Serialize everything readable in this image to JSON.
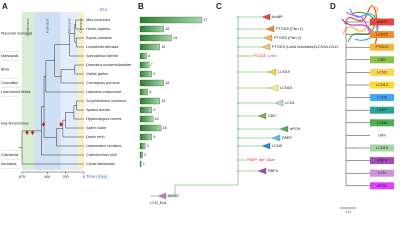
{
  "panel_a": {
    "label": "A",
    "era_title": "Era",
    "eras": [
      {
        "name": "Proterozoic",
        "start": 675,
        "end": 541,
        "color": "#d8eed3"
      },
      {
        "name": "Paleozoic",
        "start": 541,
        "end": 252,
        "color": "#cfe0f4"
      },
      {
        "name": "Mesozoic",
        "start": 252,
        "end": 66,
        "color": "#e4ecf8"
      },
      {
        "name": "Cenozoic",
        "start": 66,
        "end": 0,
        "color": "#fbefc9"
      }
    ],
    "groups": [
      "Placental mammals",
      "Marsupials",
      "Birds",
      "Crocodiles",
      "Lobe-finned fishes",
      "Ray-finned fishes",
      "Chimaeras",
      "Ascidians"
    ],
    "species": [
      "Mus musculus",
      "Homo sapiens",
      "Equus caballus",
      "Loxodonta africana",
      "Sarcophilus harrisii",
      "Dromaius novaehollandiae",
      "Gallus gallus",
      "Crocodylus porosus",
      "Latimeria chalumnae",
      "Scophthalmus maximus",
      "Sparus aurata",
      "Hippocampus comes",
      "Salmo salar",
      "Danio rerio",
      "Lepisosteus oculatus",
      "Callorhinchus milii",
      "Ciona intestinalis"
    ],
    "xlim": [
      675,
      0
    ],
    "xticks": [
      675,
      400,
      200,
      0
    ],
    "x_title": "Time (mya)"
  },
  "panel_b": {
    "label": "B",
    "counts": [
      47,
      18,
      24,
      15,
      5,
      7,
      9,
      18,
      6,
      15,
      9,
      10,
      16,
      9,
      4,
      2,
      1
    ],
    "xlim": [
      0,
      47
    ],
    "clades": [
      "APOD",
      "LCN_Exd"
    ]
  },
  "panel_c": {
    "label": "C",
    "clades": [
      {
        "label": "AmBP",
        "color": "#e8473b",
        "collapsed": true
      },
      {
        "label": "PTGDS (Fish 1)",
        "color": "#f28c28",
        "collapsed": true
      },
      {
        "label": "PTGDS (Fish 2)",
        "color": "#f6b73c",
        "collapsed": true
      },
      {
        "label": "PTGDS (Land chordates)/LCN3/LCN12",
        "color": "#f6c85a",
        "collapsed": true
      },
      {
        "label": "PTGDS_Lcho",
        "color": "#e31a1c",
        "collapsed": false
      },
      {
        "label": "LCN19",
        "color": "#fdd835",
        "collapsed": true
      },
      {
        "label": "LCN15",
        "color": "#fff176",
        "collapsed": true
      },
      {
        "label": "LCN1",
        "color": "#c5e1a5",
        "collapsed": true
      },
      {
        "label": "C8G",
        "color": "#7cb342",
        "collapsed": true
      },
      {
        "label": "aPOH",
        "color": "#4caf50",
        "collapsed": true
      },
      {
        "label": "PAEP",
        "color": "#4fc3f7",
        "collapsed": true
      },
      {
        "label": "LCN8",
        "color": "#1e88e5",
        "collapsed": true
      },
      {
        "label": "PAEP_like_Sbar",
        "color": "#e31a1c",
        "collapsed": false
      },
      {
        "label": "RBP4",
        "color": "#ab47bc",
        "collapsed": true
      }
    ]
  },
  "panel_d": {
    "label": "D",
    "scale": "1.0",
    "clades": [
      {
        "label": "AMBP",
        "color": "#e8473b"
      },
      {
        "label": "LCN15",
        "color": "#f28c28"
      },
      {
        "label": "PTGDS",
        "color": "#f6b73c"
      },
      {
        "label": "C8G",
        "color": "#8bc34a"
      },
      {
        "label": "LCN2",
        "color": "#ffd54f"
      },
      {
        "label": "LCN12",
        "color": "#fdd835"
      },
      {
        "label": "LCN9",
        "color": "#42a5f5"
      },
      {
        "label": "PAEP",
        "color": "#26a69a"
      },
      {
        "label": "LCN8",
        "color": "#4caf50"
      },
      {
        "label": "ORx",
        "color": "#ffffff"
      },
      {
        "label": "LCN10",
        "color": "#a5d6a7"
      },
      {
        "label": "RBP4",
        "color": "#ab47bc"
      },
      {
        "label": "LCN",
        "color": "#ce93d8"
      },
      {
        "label": "aPOD",
        "color": "#e040fb"
      }
    ]
  }
}
